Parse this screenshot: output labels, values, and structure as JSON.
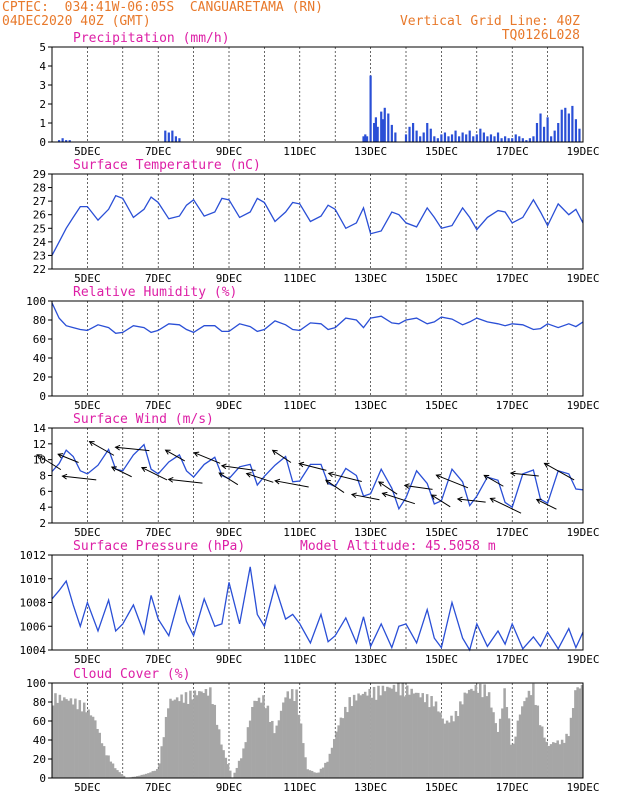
{
  "header": {
    "line1_left": "CPTEC:  034:41W-06:05S  CANGUARETAMA (RN)",
    "line2_left": "04DEC2020 40Z (GMT)",
    "line1_right": "Vertical Grid Line: 40Z",
    "line2_right": "TQ0126L028"
  },
  "colors": {
    "header": "#e8792b",
    "title": "#dd1fa6",
    "line": "#2a4fd6",
    "cloud": "#a6a6a6",
    "arrow": "#000000"
  },
  "chart_data": [
    {
      "type": "bar",
      "title": "Precipitation (mm/h)",
      "ylim": [
        0,
        5
      ],
      "yticks": [
        "0",
        "1",
        "2",
        "3",
        "4",
        "5"
      ],
      "xtick_labels": [
        "5DEC",
        "7DEC",
        "9DEC",
        "11DEC",
        "13DEC",
        "15DEC",
        "17DEC",
        "19DEC"
      ],
      "x_range_days": [
        4.0,
        19.0
      ],
      "x": [
        4.2,
        4.3,
        4.4,
        4.5,
        7.2,
        7.3,
        7.4,
        7.5,
        7.6,
        12.8,
        12.85,
        12.9,
        13.0,
        13.1,
        13.15,
        13.2,
        13.3,
        13.35,
        13.4,
        13.5,
        13.6,
        13.7,
        14.0,
        14.1,
        14.2,
        14.3,
        14.4,
        14.5,
        14.6,
        14.7,
        14.8,
        14.9,
        15.0,
        15.1,
        15.2,
        15.3,
        15.4,
        15.5,
        15.6,
        15.7,
        15.8,
        15.9,
        16.0,
        16.1,
        16.2,
        16.3,
        16.4,
        16.5,
        16.6,
        16.7,
        16.8,
        16.9,
        17.0,
        17.1,
        17.2,
        17.3,
        17.4,
        17.5,
        17.6,
        17.7,
        17.8,
        17.9,
        18.0,
        18.1,
        18.2,
        18.3,
        18.4,
        18.5,
        18.6,
        18.7,
        18.8,
        18.9
      ],
      "values": [
        0.1,
        0.2,
        0.1,
        0.1,
        0.6,
        0.5,
        0.6,
        0.3,
        0.2,
        0.3,
        0.4,
        0.3,
        3.5,
        1.0,
        1.3,
        0.8,
        1.6,
        1.2,
        1.8,
        1.5,
        0.9,
        0.5,
        0.4,
        0.8,
        1.0,
        0.6,
        0.3,
        0.5,
        1.0,
        0.7,
        0.3,
        0.2,
        0.4,
        0.5,
        0.3,
        0.4,
        0.6,
        0.3,
        0.5,
        0.4,
        0.6,
        0.3,
        0.4,
        0.7,
        0.5,
        0.3,
        0.4,
        0.3,
        0.5,
        0.2,
        0.3,
        0.2,
        0.2,
        0.4,
        0.3,
        0.2,
        0.1,
        0.2,
        0.3,
        1.0,
        1.5,
        0.8,
        1.3,
        0.3,
        0.6,
        1.0,
        1.7,
        1.8,
        1.5,
        1.9,
        1.2,
        0.7
      ]
    },
    {
      "type": "line",
      "title": "Surface Temperature (nC)",
      "ylim": [
        22,
        29
      ],
      "yticks": [
        "22",
        "23",
        "24",
        "25",
        "26",
        "27",
        "28",
        "29"
      ],
      "xtick_labels": [
        "5DEC",
        "7DEC",
        "9DEC",
        "11DEC",
        "13DEC",
        "15DEC",
        "17DEC",
        "19DEC"
      ],
      "x_range_days": [
        4.0,
        19.0
      ],
      "x": [
        4.0,
        4.2,
        4.4,
        4.6,
        4.8,
        5.0,
        5.3,
        5.6,
        5.8,
        6.0,
        6.3,
        6.6,
        6.8,
        7.0,
        7.3,
        7.6,
        7.8,
        8.0,
        8.3,
        8.6,
        8.8,
        9.0,
        9.3,
        9.6,
        9.8,
        10.0,
        10.3,
        10.6,
        10.8,
        11.0,
        11.3,
        11.6,
        11.8,
        12.0,
        12.3,
        12.6,
        12.8,
        13.0,
        13.3,
        13.6,
        13.8,
        14.0,
        14.3,
        14.6,
        14.8,
        15.0,
        15.3,
        15.6,
        15.8,
        16.0,
        16.3,
        16.6,
        16.8,
        17.0,
        17.3,
        17.6,
        17.8,
        18.0,
        18.3,
        18.6,
        18.8,
        19.0
      ],
      "values": [
        23.0,
        24.0,
        25.0,
        25.8,
        26.6,
        26.6,
        25.6,
        26.4,
        27.4,
        27.2,
        25.8,
        26.4,
        27.3,
        26.9,
        25.7,
        25.9,
        26.7,
        27.1,
        25.9,
        26.2,
        27.2,
        27.1,
        25.8,
        26.2,
        27.2,
        26.9,
        25.5,
        26.2,
        26.9,
        26.8,
        25.5,
        25.9,
        26.7,
        26.4,
        25.0,
        25.4,
        26.5,
        24.6,
        24.8,
        26.2,
        26.0,
        25.4,
        25.1,
        26.5,
        25.8,
        25.0,
        25.2,
        26.5,
        25.8,
        24.9,
        25.8,
        26.3,
        26.2,
        25.4,
        25.8,
        27.1,
        26.2,
        25.2,
        26.8,
        26.0,
        26.4,
        25.4
      ]
    },
    {
      "type": "line",
      "title": "Relative Humidity (%)",
      "ylim": [
        0,
        100
      ],
      "yticks": [
        "0",
        "20",
        "40",
        "60",
        "80",
        "100"
      ],
      "xtick_labels": [
        "5DEC",
        "7DEC",
        "9DEC",
        "11DEC",
        "13DEC",
        "15DEC",
        "17DEC",
        "19DEC"
      ],
      "x_range_days": [
        4.0,
        19.0
      ],
      "x": [
        4.0,
        4.2,
        4.4,
        4.6,
        4.8,
        5.0,
        5.3,
        5.6,
        5.8,
        6.0,
        6.3,
        6.6,
        6.8,
        7.0,
        7.3,
        7.6,
        7.8,
        8.0,
        8.3,
        8.6,
        8.8,
        9.0,
        9.3,
        9.6,
        9.8,
        10.0,
        10.3,
        10.6,
        10.8,
        11.0,
        11.3,
        11.6,
        11.8,
        12.0,
        12.3,
        12.6,
        12.8,
        13.0,
        13.3,
        13.6,
        13.8,
        14.0,
        14.3,
        14.6,
        14.8,
        15.0,
        15.3,
        15.6,
        15.8,
        16.0,
        16.3,
        16.6,
        16.8,
        17.0,
        17.3,
        17.6,
        17.8,
        18.0,
        18.3,
        18.6,
        18.8,
        19.0
      ],
      "values": [
        98,
        82,
        74,
        72,
        70,
        69,
        75,
        72,
        66,
        67,
        74,
        72,
        67,
        69,
        76,
        75,
        70,
        67,
        74,
        74,
        68,
        68,
        76,
        73,
        68,
        70,
        79,
        75,
        70,
        69,
        77,
        76,
        70,
        72,
        82,
        80,
        72,
        82,
        84,
        77,
        76,
        80,
        82,
        76,
        78,
        83,
        81,
        75,
        78,
        82,
        78,
        76,
        74,
        76,
        75,
        70,
        71,
        76,
        72,
        76,
        73,
        78
      ]
    },
    {
      "type": "line",
      "title": "Surface Wind (m/s)",
      "ylim": [
        2,
        14
      ],
      "yticks": [
        "2",
        "4",
        "6",
        "8",
        "10",
        "12",
        "14"
      ],
      "xtick_labels": [
        "5DEC",
        "7DEC",
        "9DEC",
        "11DEC",
        "13DEC",
        "15DEC",
        "17DEC",
        "19DEC"
      ],
      "x_range_days": [
        4.0,
        19.0
      ],
      "x": [
        4.0,
        4.2,
        4.4,
        4.6,
        4.8,
        5.0,
        5.3,
        5.6,
        5.8,
        6.0,
        6.3,
        6.6,
        6.8,
        7.0,
        7.3,
        7.6,
        7.8,
        8.0,
        8.3,
        8.6,
        8.8,
        9.0,
        9.3,
        9.6,
        9.8,
        10.0,
        10.3,
        10.6,
        10.8,
        11.0,
        11.3,
        11.6,
        11.8,
        12.0,
        12.3,
        12.6,
        12.8,
        13.0,
        13.3,
        13.6,
        13.8,
        14.0,
        14.3,
        14.6,
        14.8,
        15.0,
        15.3,
        15.6,
        15.8,
        16.0,
        16.3,
        16.6,
        16.8,
        17.0,
        17.3,
        17.6,
        17.8,
        18.0,
        18.3,
        18.6,
        18.8,
        19.0
      ],
      "values": [
        8.5,
        9.5,
        11.2,
        10.4,
        8.6,
        8.2,
        9.3,
        11.3,
        8.8,
        8.6,
        10.6,
        11.9,
        8.8,
        8.2,
        9.7,
        10.6,
        8.6,
        7.8,
        9.4,
        10.3,
        8.0,
        7.6,
        9.1,
        9.4,
        6.8,
        7.9,
        9.3,
        10.4,
        7.2,
        7.3,
        9.4,
        9.4,
        7.0,
        6.6,
        8.9,
        8.0,
        5.4,
        5.7,
        8.8,
        6.4,
        3.8,
        5.2,
        8.6,
        7.0,
        4.4,
        4.8,
        8.8,
        7.2,
        4.2,
        5.4,
        7.8,
        7.4,
        4.6,
        4.0,
        8.2,
        8.7,
        5.0,
        4.5,
        8.6,
        8.2,
        6.3,
        6.2
      ]
    },
    {
      "type": "line",
      "title": "Surface Pressure (hPa)",
      "annotation": "Model Altitude: 45.5058  m",
      "ylim": [
        1004,
        1012
      ],
      "yticks": [
        "1004",
        "1006",
        "1008",
        "1010",
        "1012"
      ],
      "xtick_labels": [
        "5DEC",
        "7DEC",
        "9DEC",
        "11DEC",
        "13DEC",
        "15DEC",
        "17DEC",
        "19DEC"
      ],
      "x_range_days": [
        4.0,
        19.0
      ],
      "x": [
        4.0,
        4.2,
        4.4,
        4.6,
        4.8,
        5.0,
        5.3,
        5.6,
        5.8,
        6.0,
        6.3,
        6.6,
        6.8,
        7.0,
        7.3,
        7.6,
        7.8,
        8.0,
        8.3,
        8.6,
        8.8,
        9.0,
        9.3,
        9.6,
        9.8,
        10.0,
        10.3,
        10.6,
        10.8,
        11.0,
        11.3,
        11.6,
        11.8,
        12.0,
        12.3,
        12.6,
        12.8,
        13.0,
        13.3,
        13.6,
        13.8,
        14.0,
        14.3,
        14.6,
        14.8,
        15.0,
        15.3,
        15.6,
        15.8,
        16.0,
        16.3,
        16.6,
        16.8,
        17.0,
        17.3,
        17.6,
        17.8,
        18.0,
        18.3,
        18.6,
        18.8,
        19.0
      ],
      "values": [
        1008.3,
        1009.0,
        1009.8,
        1007.8,
        1006.0,
        1008.0,
        1005.6,
        1008.2,
        1005.6,
        1006.2,
        1007.8,
        1005.4,
        1008.6,
        1006.6,
        1005.2,
        1008.5,
        1006.4,
        1005.2,
        1008.3,
        1006.0,
        1006.2,
        1009.7,
        1006.2,
        1011.0,
        1007.0,
        1006.0,
        1009.4,
        1006.6,
        1007.0,
        1006.2,
        1004.6,
        1007.0,
        1004.7,
        1005.2,
        1006.7,
        1004.6,
        1006.8,
        1004.3,
        1006.2,
        1004.2,
        1006.0,
        1006.2,
        1004.6,
        1007.4,
        1005.0,
        1004.2,
        1008.0,
        1005.0,
        1004.0,
        1006.2,
        1004.3,
        1005.6,
        1004.5,
        1006.2,
        1004.1,
        1005.1,
        1004.3,
        1005.5,
        1004.1,
        1005.8,
        1004.2,
        1005.5
      ]
    },
    {
      "type": "area",
      "title": "Cloud Cover (%)",
      "ylim": [
        0,
        100
      ],
      "yticks": [
        "0",
        "20",
        "40",
        "60",
        "80",
        "100"
      ],
      "xtick_labels": [
        "5DEC",
        "7DEC",
        "9DEC",
        "11DEC",
        "13DEC",
        "15DEC",
        "17DEC",
        "19DEC"
      ],
      "x_range_days": [
        4.0,
        19.0
      ],
      "x": [
        4.0,
        4.3,
        4.6,
        4.9,
        5.2,
        5.5,
        5.8,
        6.1,
        6.4,
        6.7,
        7.0,
        7.3,
        7.6,
        7.9,
        8.2,
        8.5,
        8.8,
        9.1,
        9.4,
        9.7,
        10.0,
        10.3,
        10.6,
        10.9,
        11.2,
        11.5,
        11.8,
        12.1,
        12.4,
        12.7,
        13.0,
        13.3,
        13.6,
        13.9,
        14.2,
        14.5,
        14.8,
        15.1,
        15.4,
        15.7,
        16.0,
        16.3,
        16.6,
        16.8,
        17.0,
        17.2,
        17.4,
        17.6,
        17.8,
        18.0,
        18.2,
        18.4,
        18.6,
        18.8,
        19.0
      ],
      "values": [
        90,
        88,
        85,
        80,
        65,
        30,
        10,
        0,
        2,
        5,
        10,
        85,
        88,
        92,
        95,
        96,
        35,
        0,
        30,
        85,
        88,
        50,
        92,
        95,
        10,
        5,
        20,
        60,
        85,
        92,
        95,
        98,
        100,
        100,
        95,
        90,
        85,
        60,
        70,
        95,
        100,
        98,
        50,
        100,
        30,
        70,
        90,
        100,
        60,
        35,
        40,
        40,
        50,
        100,
        100
      ]
    }
  ]
}
